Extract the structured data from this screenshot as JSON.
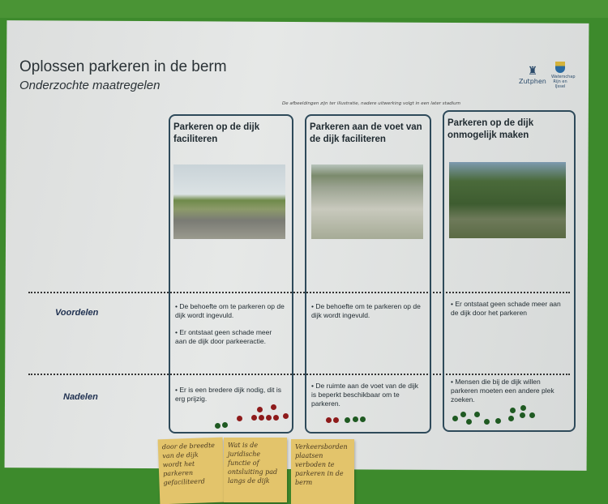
{
  "poster": {
    "title": "Oplossen parkeren in de berm",
    "subtitle": "Onderzochte maatregelen",
    "note": "De afbeeldingen zijn ter illustratie, nadere uitwerking volgt in een later stadium",
    "logos": {
      "municipality": "Zutphen",
      "water_board": "Waterschap Rijn en IJssel"
    },
    "row_labels": {
      "advantages": "Voordelen",
      "disadvantages": "Nadelen"
    },
    "columns": [
      {
        "title": "Parkeren op de dijk faciliteren",
        "advantages": [
          "• De behoefte om te parkeren op de dijk wordt ingevuld.",
          "• Er ontstaat geen schade meer aan de dijk door parkeeractie."
        ],
        "disadvantages": [
          "• Er is een bredere dijk nodig, dit is erg prijzig."
        ],
        "votes": {
          "green": 2,
          "red": 8
        }
      },
      {
        "title": "Parkeren aan de voet van de dijk faciliteren",
        "advantages": [
          "• De behoefte om te parkeren op de dijk wordt ingevuld."
        ],
        "disadvantages": [
          "• De ruimte aan de voet van de dijk is beperkt beschikbaar om te parkeren."
        ],
        "votes": {
          "green": 3,
          "red": 2
        }
      },
      {
        "title": "Parkeren op de dijk onmogelijk maken",
        "advantages": [
          "• Er ontstaat geen schade meer aan de dijk door het parkeren"
        ],
        "disadvantages": [
          "• Mensen die bij de dijk willen parkeren moeten een andere plek zoeken."
        ],
        "votes": {
          "green": 11,
          "red": 0
        }
      }
    ]
  },
  "sticky_notes": [
    "door de breedte van de dijk wordt het parkeren gefaciliteerd",
    "Wat is de juridische functie of ontsluiting pad langs de dijk",
    "Verkeersborden plaatsen verboden te parkeren in de berm"
  ],
  "colors": {
    "wall": "#3d8a2c",
    "frame": "#2e4a5a",
    "vote_red": "#8e1b1b",
    "vote_green": "#1f5a22",
    "sticky": "#e3c46b"
  }
}
